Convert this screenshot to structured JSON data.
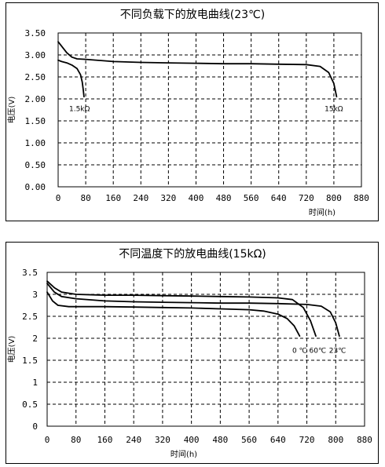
{
  "chart_data": [
    {
      "type": "line",
      "title": "不同负载下的放电曲线(23℃)",
      "xlabel": "时间(h)",
      "ylabel": "电压(V)",
      "xlim": [
        0,
        880
      ],
      "ylim": [
        0,
        3.5
      ],
      "xticks": [
        "0",
        "80",
        "160",
        "240",
        "320",
        "400",
        "480",
        "560",
        "640",
        "720",
        "800",
        "880"
      ],
      "yticks": [
        "0.00",
        "0.50",
        "1.00",
        "1.50",
        "2.00",
        "2.50",
        "3.00",
        "3.50"
      ],
      "grid": true,
      "annotations": [
        {
          "text": "1.5kΩ",
          "x": 62,
          "y": 1.9
        },
        {
          "text": "15kΩ",
          "x": 800,
          "y": 1.9
        }
      ],
      "series": [
        {
          "name": "1.5kΩ",
          "x": [
            0,
            10,
            25,
            40,
            55,
            65,
            70,
            73,
            75
          ],
          "y": [
            2.88,
            2.85,
            2.82,
            2.77,
            2.69,
            2.55,
            2.38,
            2.2,
            2.05
          ]
        },
        {
          "name": "15kΩ",
          "x": [
            0,
            10,
            25,
            40,
            55,
            80,
            160,
            240,
            320,
            400,
            480,
            560,
            640,
            720,
            760,
            785,
            800,
            808
          ],
          "y": [
            3.3,
            3.2,
            3.05,
            2.95,
            2.91,
            2.9,
            2.85,
            2.83,
            2.82,
            2.81,
            2.8,
            2.8,
            2.79,
            2.78,
            2.74,
            2.6,
            2.35,
            2.05
          ]
        }
      ]
    },
    {
      "type": "line",
      "title": "不同温度下的放电曲线(15kΩ)",
      "xlabel": "时间(h)",
      "ylabel": "电压(V)",
      "xlim": [
        0,
        880
      ],
      "ylim": [
        0,
        3.5
      ],
      "xticks": [
        "0",
        "80",
        "160",
        "240",
        "320",
        "400",
        "480",
        "560",
        "640",
        "720",
        "800",
        "880"
      ],
      "yticks": [
        "0",
        "0.5",
        "1",
        "1.5",
        "2",
        "2.5",
        "3",
        "3.5"
      ],
      "grid": true,
      "annotations": [
        {
          "text": "0 ℃",
          "x": 700,
          "y": 1.85
        },
        {
          "text": "60℃",
          "x": 750,
          "y": 1.85
        },
        {
          "text": "23℃",
          "x": 805,
          "y": 1.85
        }
      ],
      "series": [
        {
          "name": "60℃",
          "x": [
            0,
            20,
            40,
            80,
            160,
            240,
            320,
            400,
            480,
            560,
            640,
            680,
            710,
            730,
            745
          ],
          "y": [
            3.3,
            3.15,
            3.05,
            3.0,
            2.98,
            2.98,
            2.97,
            2.96,
            2.95,
            2.94,
            2.92,
            2.88,
            2.7,
            2.4,
            2.05
          ]
        },
        {
          "name": "23℃",
          "x": [
            0,
            20,
            40,
            80,
            160,
            240,
            320,
            400,
            480,
            560,
            640,
            720,
            760,
            785,
            800,
            810
          ],
          "y": [
            3.25,
            3.05,
            2.95,
            2.9,
            2.85,
            2.83,
            2.82,
            2.81,
            2.8,
            2.8,
            2.79,
            2.77,
            2.73,
            2.6,
            2.35,
            2.05
          ]
        },
        {
          "name": "0 ℃",
          "x": [
            0,
            15,
            30,
            60,
            80,
            160,
            240,
            320,
            400,
            480,
            560,
            600,
            640,
            665,
            685,
            700
          ],
          "y": [
            3.05,
            2.85,
            2.75,
            2.72,
            2.72,
            2.72,
            2.71,
            2.7,
            2.69,
            2.67,
            2.65,
            2.62,
            2.55,
            2.45,
            2.28,
            2.05
          ]
        }
      ]
    }
  ]
}
